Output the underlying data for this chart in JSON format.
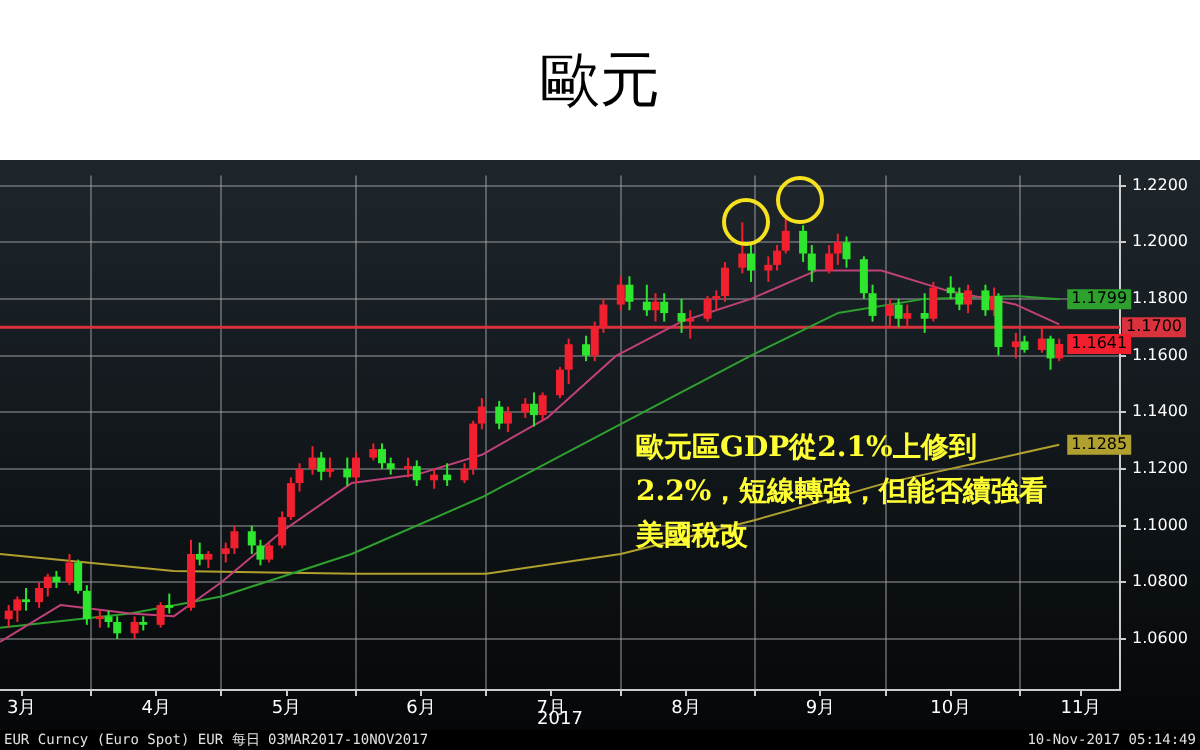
{
  "chart_data": {
    "type": "candlestick",
    "title": "歐元",
    "xlabel": "2017",
    "x": [
      "2017-03-13",
      "2017-03-15",
      "2017-03-17",
      "2017-03-20",
      "2017-03-22",
      "2017-03-24",
      "2017-03-27",
      "2017-03-29",
      "2017-03-31",
      "2017-04-03",
      "2017-04-05",
      "2017-04-07",
      "2017-04-11",
      "2017-04-13",
      "2017-04-17",
      "2017-04-19",
      "2017-04-24",
      "2017-04-26",
      "2017-04-28",
      "2017-05-02",
      "2017-05-04",
      "2017-05-08",
      "2017-05-10",
      "2017-05-12",
      "2017-05-15",
      "2017-05-17",
      "2017-05-19",
      "2017-05-22",
      "2017-05-24",
      "2017-05-26",
      "2017-05-30",
      "2017-06-01",
      "2017-06-05",
      "2017-06-07",
      "2017-06-09",
      "2017-06-13",
      "2017-06-15",
      "2017-06-19",
      "2017-06-22",
      "2017-06-26",
      "2017-06-28",
      "2017-06-30",
      "2017-07-04",
      "2017-07-06",
      "2017-07-10",
      "2017-07-12",
      "2017-07-14",
      "2017-07-18",
      "2017-07-20",
      "2017-07-24",
      "2017-07-26",
      "2017-07-28",
      "2017-08-01",
      "2017-08-03",
      "2017-08-07",
      "2017-08-09",
      "2017-08-11",
      "2017-08-15",
      "2017-08-17",
      "2017-08-21",
      "2017-08-23",
      "2017-08-25",
      "2017-08-29",
      "2017-08-31",
      "2017-09-04",
      "2017-09-06",
      "2017-09-08",
      "2017-09-12",
      "2017-09-14",
      "2017-09-18",
      "2017-09-20",
      "2017-09-22",
      "2017-09-26",
      "2017-09-28",
      "2017-10-02",
      "2017-10-04",
      "2017-10-06",
      "2017-10-10",
      "2017-10-12",
      "2017-10-16",
      "2017-10-18",
      "2017-10-20",
      "2017-10-24",
      "2017-10-26",
      "2017-10-27",
      "2017-10-31",
      "2017-11-02",
      "2017-11-06",
      "2017-11-08",
      "2017-11-10"
    ],
    "ohlc": [
      [
        1.067,
        1.072,
        1.064,
        1.07
      ],
      [
        1.07,
        1.075,
        1.066,
        1.074
      ],
      [
        1.074,
        1.078,
        1.07,
        1.073
      ],
      [
        1.073,
        1.08,
        1.071,
        1.078
      ],
      [
        1.078,
        1.083,
        1.075,
        1.082
      ],
      [
        1.082,
        1.084,
        1.078,
        1.08
      ],
      [
        1.08,
        1.09,
        1.079,
        1.087
      ],
      [
        1.087,
        1.088,
        1.076,
        1.077
      ],
      [
        1.077,
        1.079,
        1.065,
        1.067
      ],
      [
        1.067,
        1.07,
        1.064,
        1.068
      ],
      [
        1.068,
        1.07,
        1.064,
        1.066
      ],
      [
        1.066,
        1.068,
        1.06,
        1.062
      ],
      [
        1.062,
        1.068,
        1.06,
        1.066
      ],
      [
        1.066,
        1.068,
        1.063,
        1.065
      ],
      [
        1.065,
        1.073,
        1.064,
        1.072
      ],
      [
        1.072,
        1.076,
        1.069,
        1.071
      ],
      [
        1.071,
        1.095,
        1.07,
        1.09
      ],
      [
        1.09,
        1.094,
        1.086,
        1.088
      ],
      [
        1.088,
        1.091,
        1.085,
        1.09
      ],
      [
        1.09,
        1.094,
        1.087,
        1.092
      ],
      [
        1.092,
        1.1,
        1.09,
        1.098
      ],
      [
        1.098,
        1.1,
        1.09,
        1.093
      ],
      [
        1.093,
        1.095,
        1.086,
        1.088
      ],
      [
        1.088,
        1.094,
        1.087,
        1.093
      ],
      [
        1.093,
        1.105,
        1.092,
        1.103
      ],
      [
        1.103,
        1.117,
        1.102,
        1.115
      ],
      [
        1.115,
        1.122,
        1.112,
        1.12
      ],
      [
        1.12,
        1.128,
        1.118,
        1.124
      ],
      [
        1.124,
        1.126,
        1.116,
        1.119
      ],
      [
        1.119,
        1.124,
        1.117,
        1.12
      ],
      [
        1.12,
        1.124,
        1.114,
        1.117
      ],
      [
        1.117,
        1.126,
        1.115,
        1.124
      ],
      [
        1.124,
        1.129,
        1.123,
        1.127
      ],
      [
        1.127,
        1.129,
        1.12,
        1.122
      ],
      [
        1.122,
        1.124,
        1.118,
        1.12
      ],
      [
        1.12,
        1.124,
        1.117,
        1.121
      ],
      [
        1.121,
        1.123,
        1.114,
        1.116
      ],
      [
        1.116,
        1.12,
        1.113,
        1.118
      ],
      [
        1.118,
        1.122,
        1.114,
        1.116
      ],
      [
        1.116,
        1.122,
        1.115,
        1.12
      ],
      [
        1.12,
        1.137,
        1.118,
        1.136
      ],
      [
        1.136,
        1.145,
        1.134,
        1.142
      ],
      [
        1.142,
        1.144,
        1.134,
        1.136
      ],
      [
        1.136,
        1.142,
        1.133,
        1.14
      ],
      [
        1.14,
        1.145,
        1.138,
        1.143
      ],
      [
        1.143,
        1.147,
        1.135,
        1.139
      ],
      [
        1.139,
        1.147,
        1.137,
        1.146
      ],
      [
        1.146,
        1.156,
        1.145,
        1.155
      ],
      [
        1.155,
        1.166,
        1.15,
        1.164
      ],
      [
        1.164,
        1.167,
        1.158,
        1.16
      ],
      [
        1.16,
        1.172,
        1.158,
        1.17
      ],
      [
        1.17,
        1.18,
        1.168,
        1.178
      ],
      [
        1.178,
        1.188,
        1.176,
        1.185
      ],
      [
        1.185,
        1.188,
        1.176,
        1.179
      ],
      [
        1.179,
        1.185,
        1.174,
        1.176
      ],
      [
        1.176,
        1.182,
        1.172,
        1.179
      ],
      [
        1.179,
        1.182,
        1.172,
        1.175
      ],
      [
        1.175,
        1.18,
        1.168,
        1.172
      ],
      [
        1.172,
        1.176,
        1.166,
        1.173
      ],
      [
        1.173,
        1.181,
        1.172,
        1.18
      ],
      [
        1.18,
        1.183,
        1.176,
        1.181
      ],
      [
        1.181,
        1.193,
        1.179,
        1.191
      ],
      [
        1.191,
        1.207,
        1.189,
        1.196
      ],
      [
        1.196,
        1.199,
        1.186,
        1.19
      ],
      [
        1.19,
        1.195,
        1.186,
        1.192
      ],
      [
        1.192,
        1.199,
        1.19,
        1.197
      ],
      [
        1.197,
        1.209,
        1.196,
        1.204
      ],
      [
        1.204,
        1.206,
        1.193,
        1.196
      ],
      [
        1.196,
        1.199,
        1.186,
        1.19
      ],
      [
        1.19,
        1.199,
        1.189,
        1.196
      ],
      [
        1.196,
        1.203,
        1.192,
        1.2
      ],
      [
        1.2,
        1.202,
        1.191,
        1.194
      ],
      [
        1.194,
        1.195,
        1.18,
        1.182
      ],
      [
        1.182,
        1.185,
        1.172,
        1.174
      ],
      [
        1.174,
        1.18,
        1.17,
        1.178
      ],
      [
        1.178,
        1.18,
        1.17,
        1.173
      ],
      [
        1.173,
        1.178,
        1.17,
        1.175
      ],
      [
        1.175,
        1.182,
        1.168,
        1.173
      ],
      [
        1.173,
        1.186,
        1.172,
        1.184
      ],
      [
        1.184,
        1.188,
        1.18,
        1.182
      ],
      [
        1.182,
        1.184,
        1.176,
        1.178
      ],
      [
        1.178,
        1.185,
        1.175,
        1.183
      ],
      [
        1.183,
        1.185,
        1.174,
        1.176
      ],
      [
        1.176,
        1.184,
        1.174,
        1.181
      ],
      [
        1.181,
        1.182,
        1.16,
        1.163
      ],
      [
        1.163,
        1.168,
        1.159,
        1.165
      ],
      [
        1.165,
        1.167,
        1.161,
        1.162
      ],
      [
        1.162,
        1.17,
        1.161,
        1.166
      ],
      [
        1.166,
        1.167,
        1.155,
        1.159
      ],
      [
        1.159,
        1.166,
        1.158,
        1.1641
      ]
    ],
    "colors": [
      "#f2202e",
      "#f2202e",
      "#2ee62e",
      "#f2202e",
      "#f2202e",
      "#2ee62e",
      "#f2202e",
      "#2ee62e",
      "#2ee62e",
      "#f2202e",
      "#2ee62e",
      "#2ee62e",
      "#f2202e",
      "#2ee62e",
      "#f2202e",
      "#2ee62e",
      "#f2202e",
      "#2ee62e",
      "#f2202e",
      "#f2202e",
      "#f2202e",
      "#2ee62e",
      "#2ee62e",
      "#f2202e",
      "#f2202e",
      "#f2202e",
      "#f2202e",
      "#f2202e",
      "#2ee62e",
      "#f2202e",
      "#2ee62e",
      "#f2202e",
      "#f2202e",
      "#2ee62e",
      "#2ee62e",
      "#f2202e",
      "#2ee62e",
      "#f2202e",
      "#2ee62e",
      "#f2202e",
      "#f2202e",
      "#f2202e",
      "#2ee62e",
      "#f2202e",
      "#f2202e",
      "#2ee62e",
      "#f2202e",
      "#f2202e",
      "#f2202e",
      "#2ee62e",
      "#f2202e",
      "#f2202e",
      "#f2202e",
      "#2ee62e",
      "#2ee62e",
      "#f2202e",
      "#2ee62e",
      "#2ee62e",
      "#f2202e",
      "#f2202e",
      "#f2202e",
      "#f2202e",
      "#f2202e",
      "#2ee62e",
      "#f2202e",
      "#f2202e",
      "#f2202e",
      "#2ee62e",
      "#2ee62e",
      "#f2202e",
      "#f2202e",
      "#2ee62e",
      "#2ee62e",
      "#2ee62e",
      "#f2202e",
      "#2ee62e",
      "#f2202e",
      "#2ee62e",
      "#f2202e",
      "#2ee62e",
      "#2ee62e",
      "#f2202e",
      "#2ee62e",
      "#f2202e",
      "#2ee62e",
      "#f2202e",
      "#2ee62e",
      "#f2202e",
      "#2ee62e",
      "#f2202e"
    ],
    "series": [
      {
        "type": "line",
        "color": "#c0407a",
        "x": [
          "2017-03-11",
          "2017-03-25",
          "2017-04-10",
          "2017-04-20",
          "2017-05-01",
          "2017-05-15",
          "2017-05-31",
          "2017-06-15",
          "2017-06-30",
          "2017-07-15",
          "2017-07-31",
          "2017-08-15",
          "2017-08-31",
          "2017-09-15",
          "2017-09-30",
          "2017-10-15",
          "2017-10-31",
          "2017-11-10"
        ],
        "values": [
          1.059,
          1.072,
          1.069,
          1.068,
          1.08,
          1.098,
          1.115,
          1.118,
          1.125,
          1.138,
          1.16,
          1.172,
          1.18,
          1.19,
          1.19,
          1.183,
          1.178,
          1.171
        ]
      },
      {
        "type": "line",
        "color": "#2ea02e",
        "x": [
          "2017-03-11",
          "2017-04-10",
          "2017-05-01",
          "2017-05-31",
          "2017-06-30",
          "2017-07-31",
          "2017-08-31",
          "2017-09-20",
          "2017-10-10",
          "2017-10-31",
          "2017-11-10"
        ],
        "values": [
          1.064,
          1.069,
          1.075,
          1.09,
          1.11,
          1.135,
          1.16,
          1.175,
          1.18,
          1.181,
          1.1799
        ],
        "value_labels": [
          null,
          null,
          null,
          null,
          null,
          null,
          null,
          null,
          null,
          null,
          "1.1799"
        ]
      },
      {
        "type": "line",
        "color": "#b0a030",
        "x": [
          "2017-03-11",
          "2017-04-20",
          "2017-06-01",
          "2017-07-01",
          "2017-08-01",
          "2017-09-01",
          "2017-10-01",
          "2017-11-10"
        ],
        "values": [
          1.09,
          1.084,
          1.083,
          1.083,
          1.09,
          1.102,
          1.115,
          1.1285
        ],
        "value_labels": [
          null,
          null,
          null,
          null,
          null,
          null,
          null,
          "1.1285"
        ]
      }
    ],
    "ref_lines": [
      {
        "axis": "y",
        "value": 1.17,
        "label": "1.1700",
        "color": "#d8323c"
      }
    ],
    "xlim": [
      "2017-03-11",
      "2017-11-24"
    ],
    "xticks": [
      {
        "value": "2017-03-16",
        "label": "3月"
      },
      {
        "value": "2017-04-01",
        "label": null
      },
      {
        "value": "2017-04-16",
        "label": "4月"
      },
      {
        "value": "2017-05-01",
        "label": null
      },
      {
        "value": "2017-05-16",
        "label": "5月"
      },
      {
        "value": "2017-06-01",
        "label": null
      },
      {
        "value": "2017-06-16",
        "label": "6月"
      },
      {
        "value": "2017-07-01",
        "label": null
      },
      {
        "value": "2017-07-16",
        "label": "7月"
      },
      {
        "value": "2017-08-01",
        "label": null
      },
      {
        "value": "2017-08-16",
        "label": "8月"
      },
      {
        "value": "2017-09-01",
        "label": null
      },
      {
        "value": "2017-09-16",
        "label": "9月"
      },
      {
        "value": "2017-10-01",
        "label": null
      },
      {
        "value": "2017-10-16",
        "label": "10月"
      },
      {
        "value": "2017-11-01",
        "label": null
      },
      {
        "value": "2017-11-15",
        "label": "11月"
      }
    ],
    "ylim": [
      1.042,
      1.2235
    ],
    "yticks": [
      {
        "value": 1.06,
        "label": "1.0600"
      },
      {
        "value": 1.08,
        "label": "1.0800"
      },
      {
        "value": 1.1,
        "label": "1.1000"
      },
      {
        "value": 1.12,
        "label": "1.1200"
      },
      {
        "value": 1.14,
        "label": "1.1400"
      },
      {
        "value": 1.16,
        "label": "1.1600"
      },
      {
        "value": 1.18,
        "label": "1.1800"
      },
      {
        "value": 1.2,
        "label": "1.2000"
      },
      {
        "value": 1.22,
        "label": "1.2200"
      }
    ],
    "grid": true,
    "annotations": [
      "歐元區GDP從2.1%上修到2.2%，短線轉強，但能否續強看美國稅改",
      "EUR Curncy (Euro Spot) EUR  每日 03MAR2017-10NOV2017",
      "10-Nov-2017 05:14:49",
      {
        "text": "1.1641",
        "x": "2017-11-10",
        "y": 1.1641
      }
    ]
  }
}
